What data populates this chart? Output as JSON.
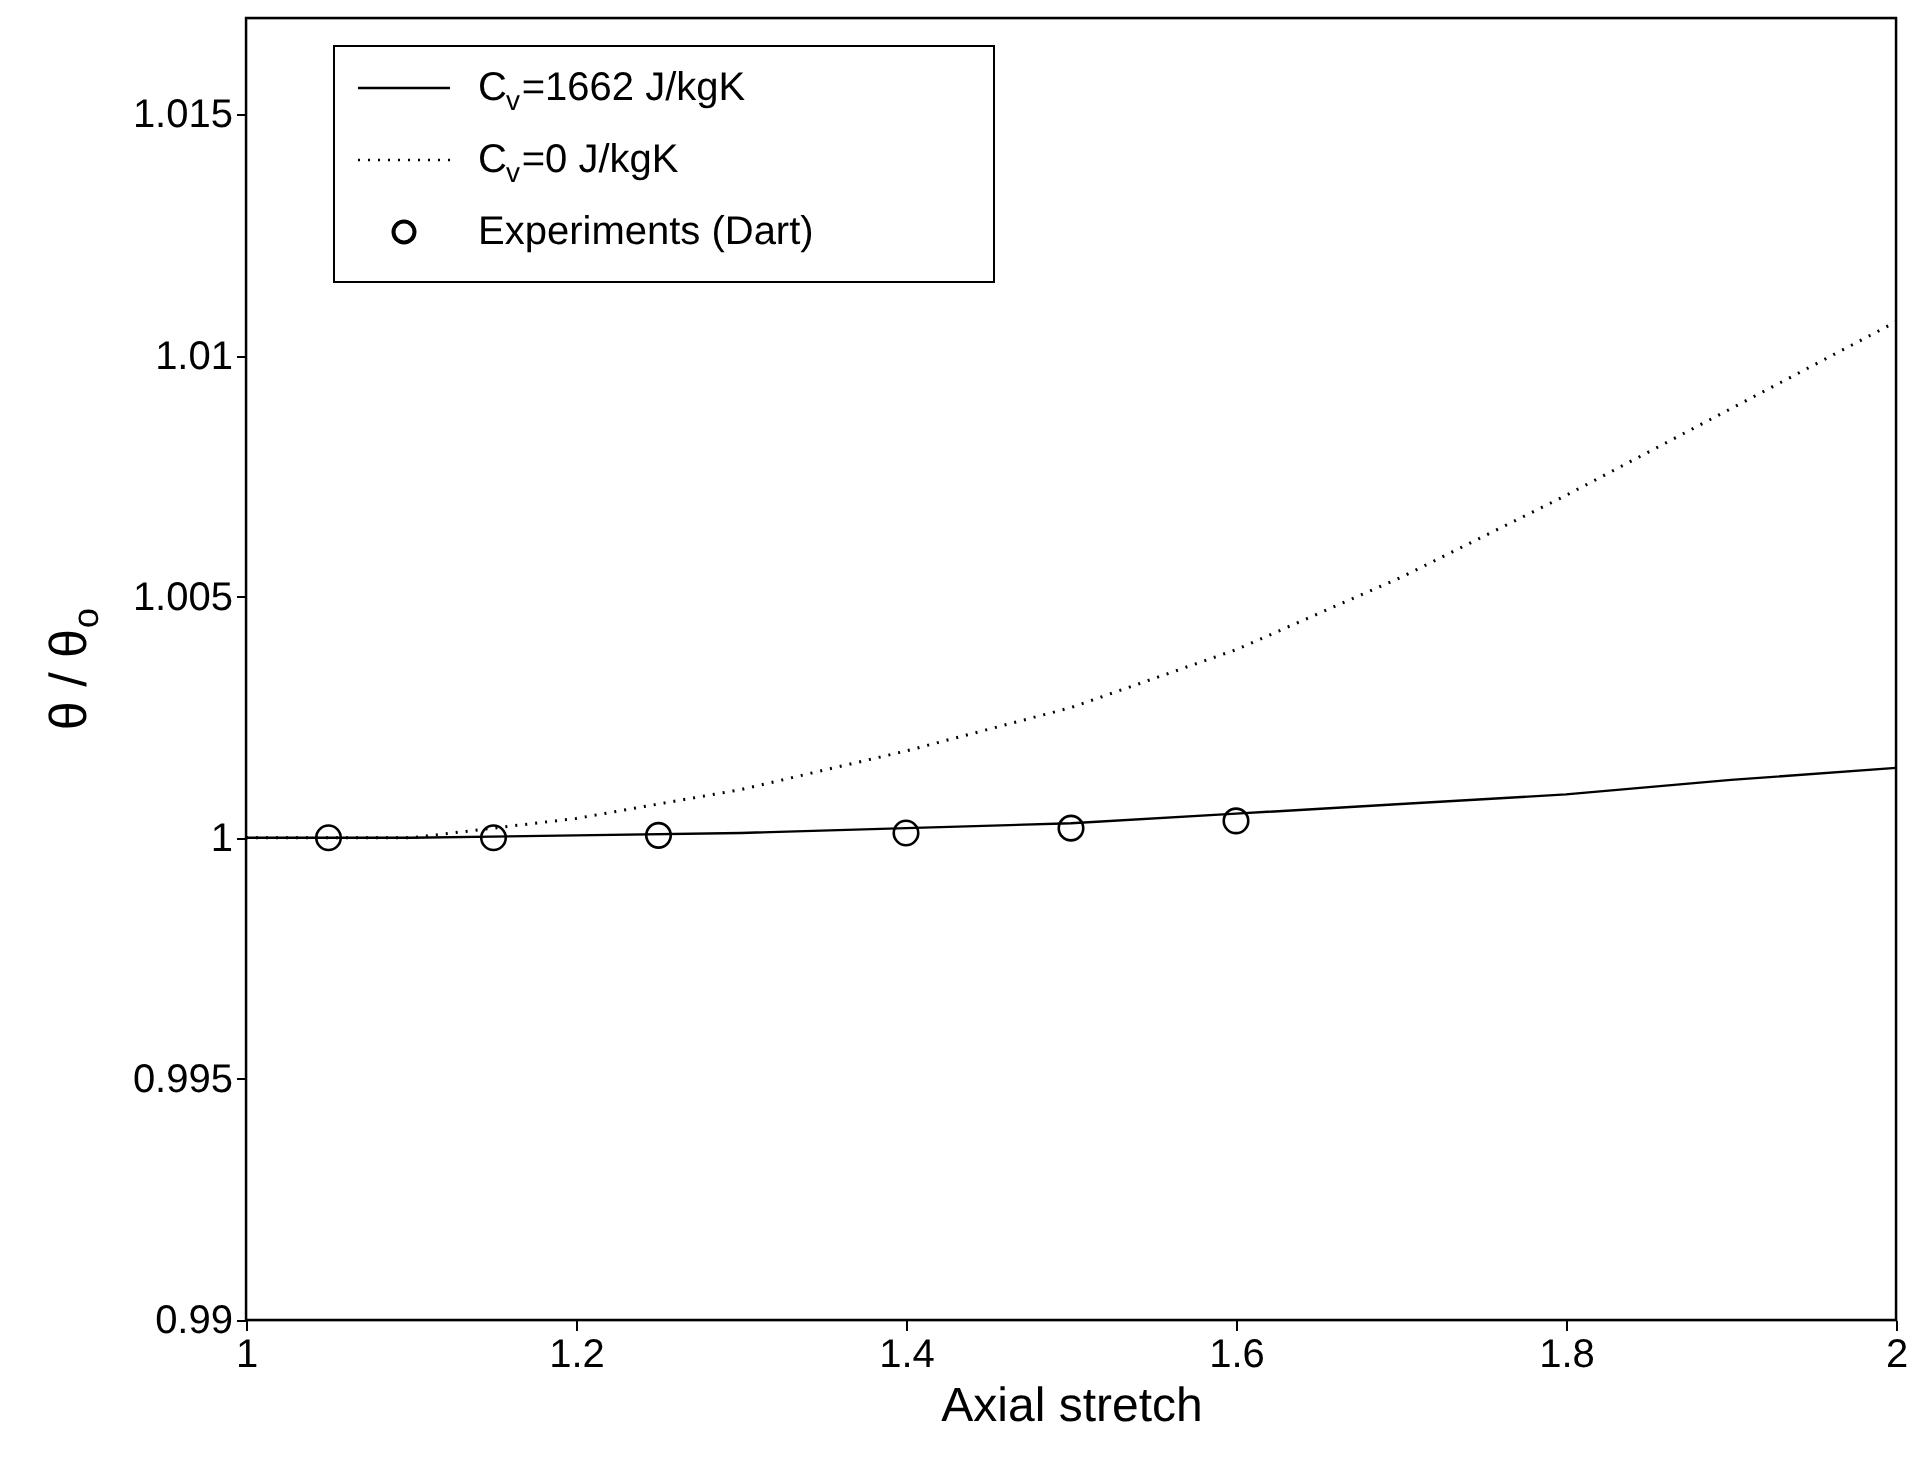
{
  "chart_data": {
    "type": "line",
    "xlabel": "Axial stretch",
    "ylabel": "θ / θ$_{o}$",
    "xlim": [
      1,
      2
    ],
    "ylim": [
      0.99,
      1.017
    ],
    "xticks": [
      1,
      1.2,
      1.4,
      1.6,
      1.8,
      2
    ],
    "yticks": [
      0.99,
      0.995,
      1,
      1.005,
      1.01,
      1.015
    ],
    "grid": false,
    "legend": "top left",
    "series": [
      {
        "name": "C$_{v}$=1662 J/kgK",
        "line_style": "solid",
        "color": "#000000",
        "x": [
          1,
          1.1,
          1.2,
          1.3,
          1.4,
          1.5,
          1.6,
          1.7,
          1.8,
          1.9,
          2
        ],
        "values": [
          1,
          1,
          1.00005,
          1.0001,
          1.0002,
          1.0003,
          1.0005,
          1.0007,
          1.0009,
          1.0012,
          1.00145
        ]
      },
      {
        "name": "C$_{v}$=0 J/kgK",
        "line_style": "dotted",
        "color": "#000000",
        "x": [
          1,
          1.1,
          1.2,
          1.3,
          1.4,
          1.5,
          1.6,
          1.7,
          1.8,
          1.9,
          2
        ],
        "values": [
          1,
          1,
          1.0004,
          1.001,
          1.0018,
          1.0027,
          1.0039,
          1.0054,
          1.0071,
          1.0089,
          1.0107
        ]
      },
      {
        "name": "Experiments (Dart)",
        "type": "scatter",
        "marker": "circle",
        "color": "#000000",
        "x": [
          1.05,
          1.15,
          1.25,
          1.4,
          1.5,
          1.6
        ],
        "values": [
          1,
          1,
          1.00005,
          1.0001,
          1.0002,
          1.00035
        ]
      }
    ]
  }
}
